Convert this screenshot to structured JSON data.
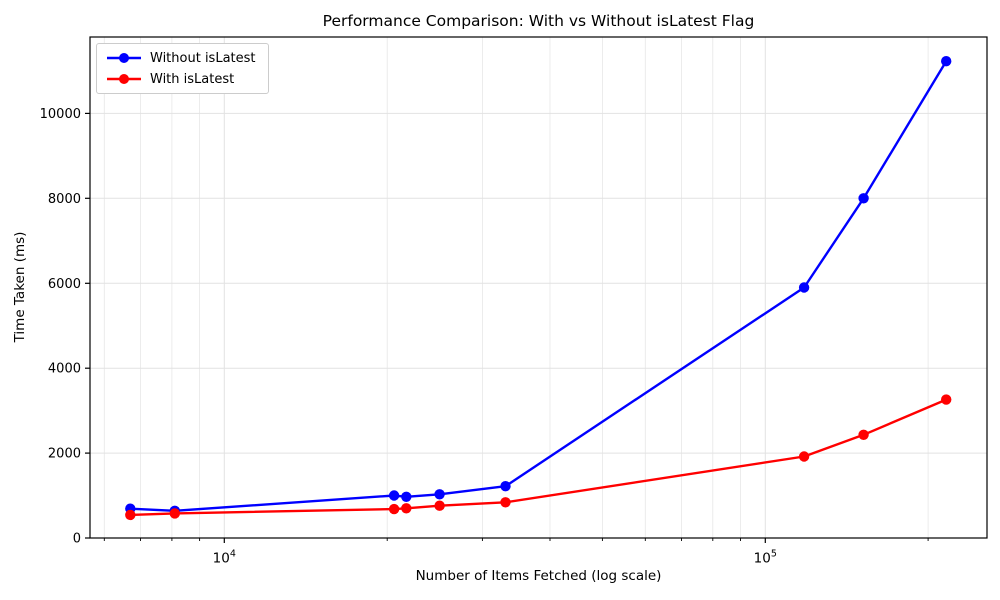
{
  "window": {
    "background": "#ffffff"
  },
  "chart_data": {
    "type": "line",
    "title": "Performance Comparison: With vs Without isLatest Flag",
    "xlabel": "Number of Items Fetched (log scale)",
    "ylabel": "Time Taken (ms)",
    "x_scale": "log",
    "grid": true,
    "legend_position": "upper left",
    "marker": "circle",
    "x": [
      6700,
      8100,
      20600,
      21700,
      25000,
      33100,
      118000,
      152000,
      216000
    ],
    "series": [
      {
        "name": "Without isLatest",
        "color": "#0000ff",
        "values": [
          690,
          640,
          1000,
          970,
          1030,
          1220,
          5900,
          8000,
          11230
        ]
      },
      {
        "name": "With isLatest",
        "color": "#ff0000",
        "values": [
          545,
          580,
          680,
          700,
          760,
          840,
          1920,
          2430,
          3260
        ]
      }
    ],
    "xlim": [
      5645,
      257000
    ],
    "ylim": [
      0,
      11800
    ],
    "yticks": [
      0,
      2000,
      4000,
      6000,
      8000,
      10000
    ],
    "xticks_major": [
      {
        "value": 10000,
        "base": "10",
        "exp": "4"
      },
      {
        "value": 100000,
        "base": "10",
        "exp": "5"
      }
    ],
    "xticks_minor": [
      6000,
      7000,
      8000,
      9000,
      20000,
      30000,
      40000,
      50000,
      60000,
      70000,
      80000,
      90000,
      200000
    ],
    "colors": {
      "grid_minor": "#e7e7e7",
      "grid_major": "#e2e2e2",
      "axis": "#000000",
      "text": "#000000"
    }
  }
}
